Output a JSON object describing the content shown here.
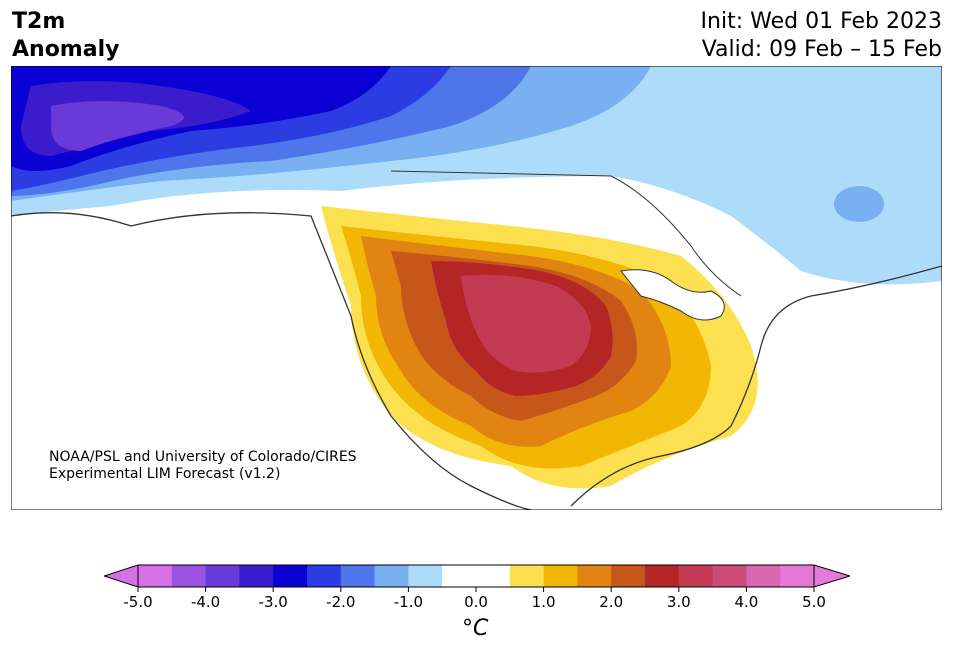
{
  "title": {
    "line1": "T2m",
    "line2": "Anomaly"
  },
  "dates": {
    "init": "Init: Wed 01 Feb 2023",
    "valid": "Valid: 09 Feb – 15 Feb"
  },
  "credit": {
    "line1": "NOAA/PSL and University of Colorado/CIRES",
    "line2": "Experimental LIM Forecast (v1.2)"
  },
  "colorbar": {
    "label": "°C",
    "ticks": [
      "-5.0",
      "-4.0",
      "-3.0",
      "-2.0",
      "-1.0",
      "0.0",
      "1.0",
      "2.0",
      "3.0",
      "4.0",
      "5.0"
    ],
    "colors": [
      "#d670e6",
      "#9a52e0",
      "#6a3ad8",
      "#3a1ccc",
      "#0a00d4",
      "#2a3ce2",
      "#4e76ea",
      "#78b0f2",
      "#acdcfa",
      "#ffffff",
      "#ffffff",
      "#fde050",
      "#f2b604",
      "#e28412",
      "#c6561a",
      "#b42626",
      "#c43a52",
      "#cc4a78",
      "#d866b0",
      "#e678d8"
    ],
    "under_color": "#d670e6",
    "over_color": "#e678d8"
  }
}
